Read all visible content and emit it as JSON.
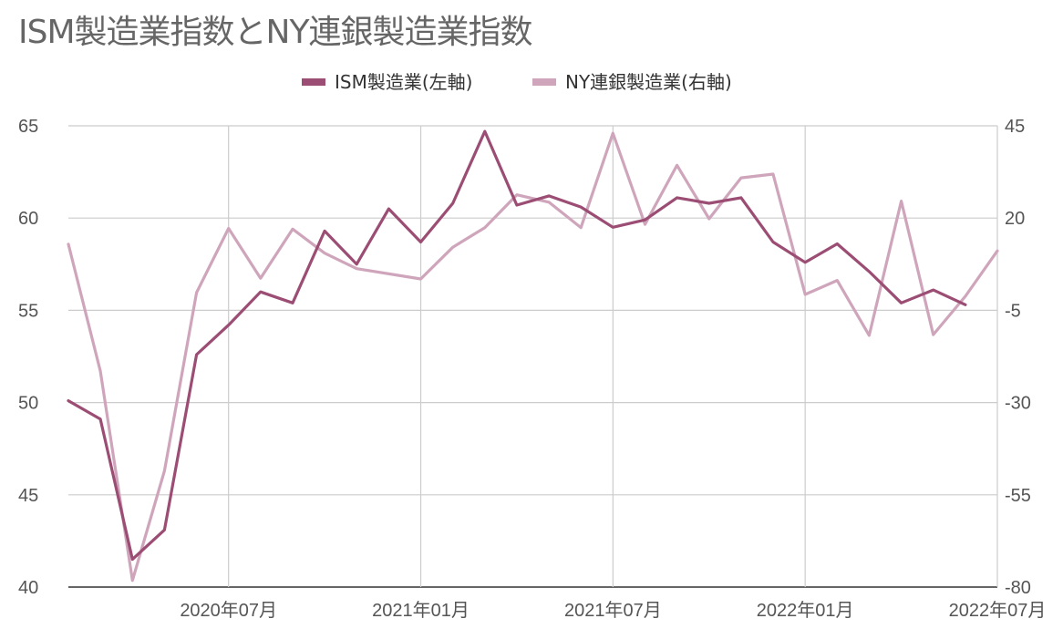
{
  "chart_data": {
    "type": "line",
    "title": "ISM製造業指数とNY連銀製造業指数",
    "legend_position": "top",
    "grid": true,
    "x": [
      "2020-02",
      "2020-03",
      "2020-04",
      "2020-05",
      "2020-06",
      "2020-07",
      "2020-08",
      "2020-09",
      "2020-10",
      "2020-11",
      "2020-12",
      "2021-01",
      "2021-02",
      "2021-03",
      "2021-04",
      "2021-05",
      "2021-06",
      "2021-07",
      "2021-08",
      "2021-09",
      "2021-10",
      "2021-11",
      "2021-12",
      "2022-01",
      "2022-02",
      "2022-03",
      "2022-04",
      "2022-05",
      "2022-06",
      "2022-07"
    ],
    "xtick_labels": [
      "2020年07月",
      "2021年01月",
      "2021年07月",
      "2022年01月",
      "2022年07月"
    ],
    "y_left": {
      "ylim": [
        40,
        65
      ],
      "ticks": [
        "40",
        "45",
        "50",
        "55",
        "60",
        "65"
      ]
    },
    "y_right": {
      "ylim": [
        -80,
        45
      ],
      "ticks": [
        "-80",
        "-55",
        "-30",
        "-5",
        "20",
        "45"
      ]
    },
    "series": [
      {
        "name": "ISM製造業(左軸)",
        "axis": "left",
        "color": "#9b4d74",
        "values": [
          50.1,
          49.1,
          41.5,
          43.1,
          52.6,
          54.2,
          56.0,
          55.4,
          59.3,
          57.5,
          60.5,
          58.7,
          60.8,
          64.7,
          60.7,
          61.2,
          60.6,
          59.5,
          59.9,
          61.1,
          60.8,
          61.1,
          58.7,
          57.6,
          58.6,
          57.1,
          55.4,
          56.1,
          55.3,
          null
        ]
      },
      {
        "name": "NY連銀製造業(右軸)",
        "axis": "right",
        "color": "#cfa5bb",
        "values": [
          12.9,
          -21.5,
          -78.2,
          -48.5,
          -0.2,
          17.2,
          3.7,
          17.0,
          10.5,
          6.3,
          null,
          3.5,
          12.1,
          17.4,
          26.3,
          24.3,
          17.4,
          43.0,
          18.3,
          34.3,
          19.8,
          30.9,
          31.9,
          -0.7,
          3.1,
          -11.8,
          24.6,
          -11.6,
          -1.2,
          11.1
        ]
      }
    ]
  }
}
